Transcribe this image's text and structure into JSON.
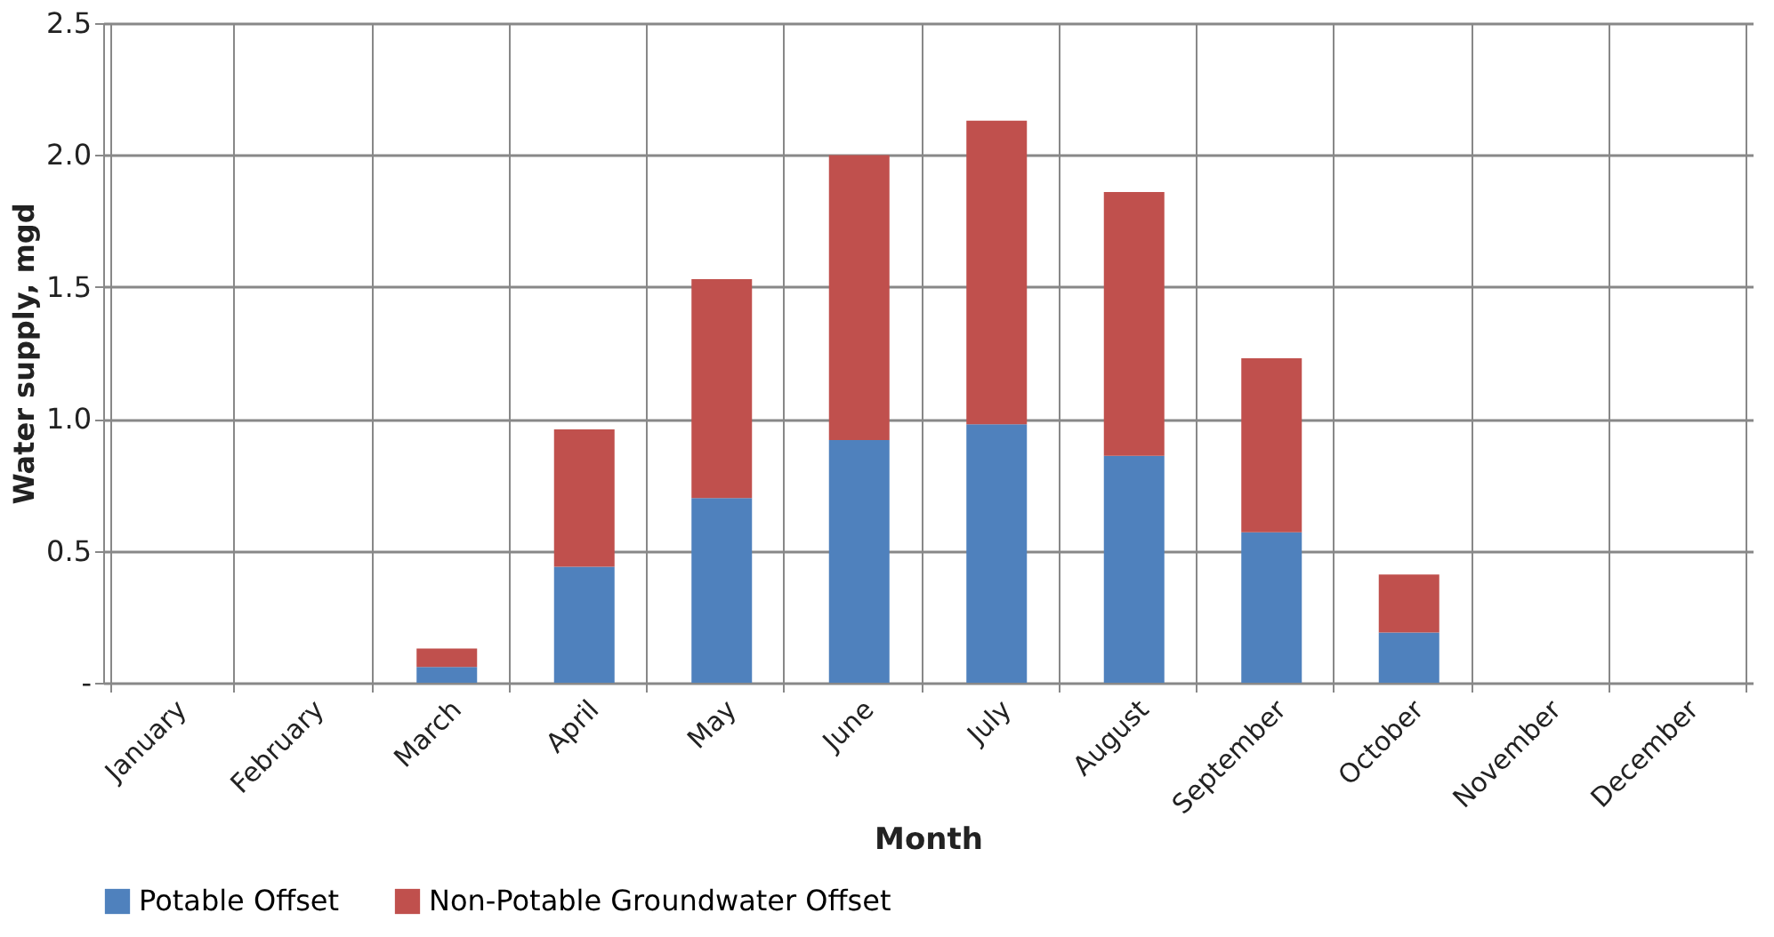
{
  "chart_data": {
    "type": "bar",
    "stacked": true,
    "xlabel": "Month",
    "ylabel": "Water supply, mgd",
    "categories": [
      "January",
      "February",
      "March",
      "April",
      "May",
      "June",
      "July",
      "August",
      "September",
      "October",
      "November",
      "December"
    ],
    "series": [
      {
        "name": "Potable Offset",
        "color": "#4f81bd",
        "values": [
          0,
          0,
          0.06,
          0.44,
          0.7,
          0.92,
          0.98,
          0.86,
          0.57,
          0.19,
          0,
          0
        ]
      },
      {
        "name": "Non-Potable Groundwater Offset",
        "color": "#c0504d",
        "values": [
          0,
          0,
          0.07,
          0.52,
          0.83,
          1.08,
          1.15,
          1.0,
          0.66,
          0.22,
          0,
          0
        ]
      }
    ],
    "ylim": [
      0,
      2.5
    ],
    "yticks": [
      {
        "value": 0,
        "label": "-"
      },
      0.5,
      {
        "value": 1,
        "label": "1.0"
      },
      1.5,
      {
        "value": 2,
        "label": "2.0"
      },
      2.5
    ],
    "grid": true,
    "legend": "bottom"
  }
}
